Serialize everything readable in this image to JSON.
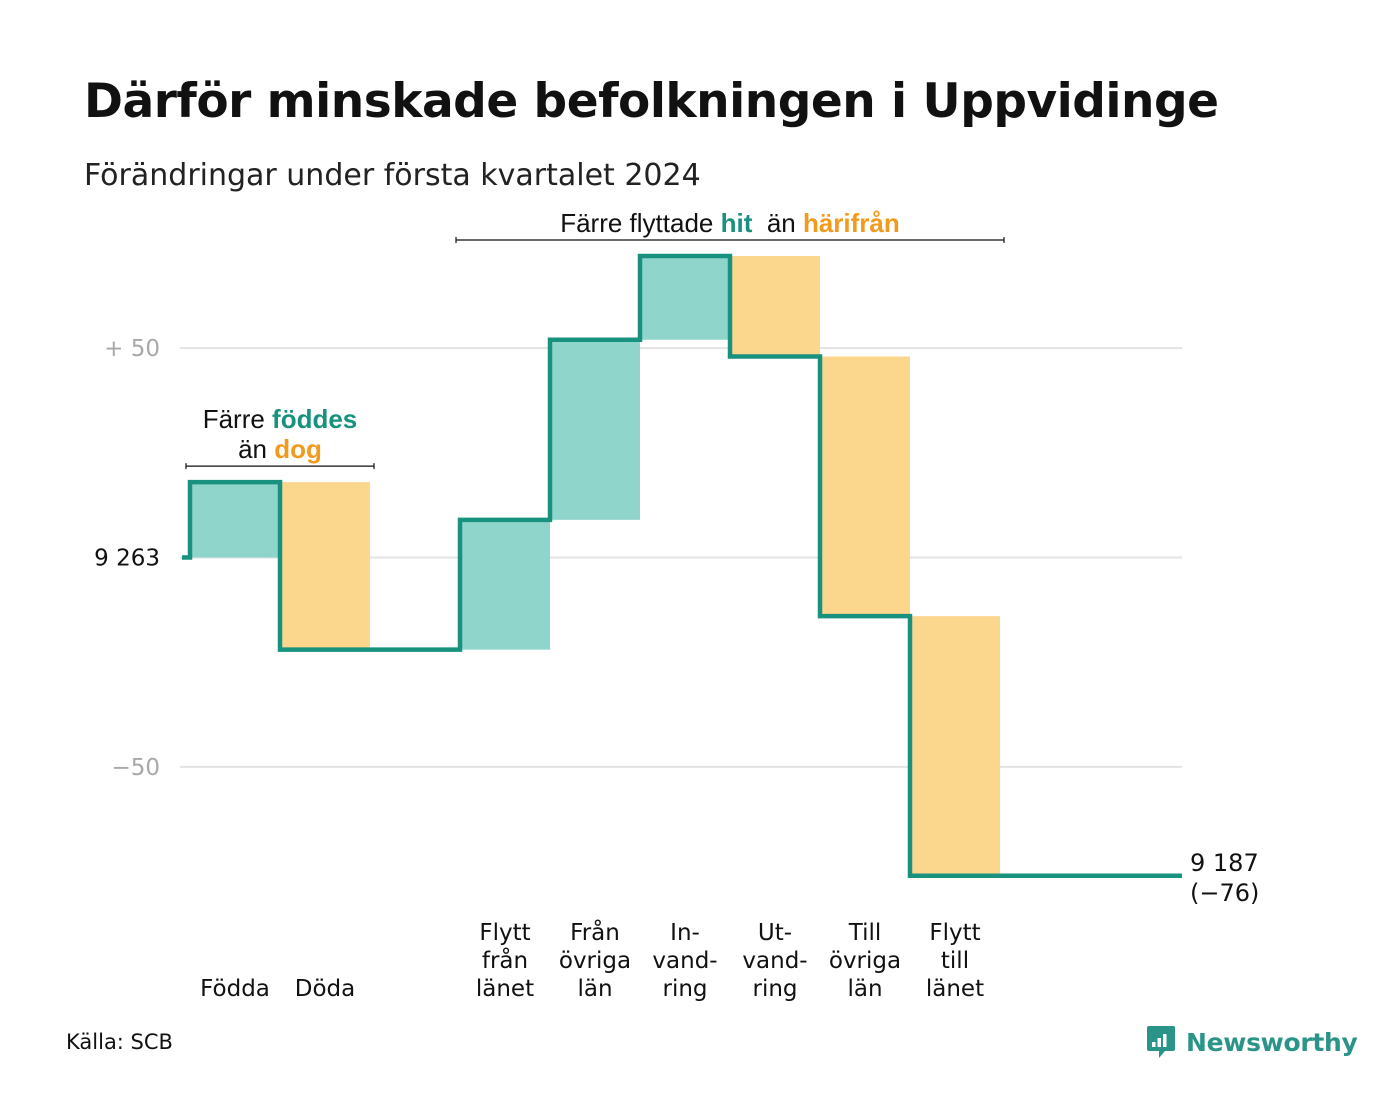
{
  "title": "Därför minskade befolkningen i Uppvidinge",
  "subtitle": "Förändringar under första kvartalet 2024",
  "source": "Källa: SCB",
  "brand": "Newsworthy",
  "colors": {
    "line": "#18917f",
    "increase": "#8fd5cb",
    "decrease": "#fbd68d",
    "increase_text": "#18917f",
    "decrease_text": "#f19a1b",
    "grid": "#e3e3e3",
    "axis_text": "#a8a8a8",
    "logo": "#2b9489"
  },
  "chart_data": {
    "type": "bar",
    "variant": "waterfall",
    "start_value": 9263,
    "end_value": 9187,
    "net_change": -76,
    "ylim": [
      -77,
      72
    ],
    "y_ticks": [
      {
        "value": 50,
        "label": "+  50"
      },
      {
        "value": 0,
        "label": "9  263"
      },
      {
        "value": -50,
        "label": "−50"
      }
    ],
    "steps": [
      {
        "category": [
          "Födda"
        ],
        "value": 18,
        "kind": "increase"
      },
      {
        "category": [
          "Döda"
        ],
        "value": -40,
        "kind": "decrease"
      },
      {
        "category": [],
        "value": 0,
        "kind": "gap"
      },
      {
        "category": [
          "Flytt",
          "från",
          "länet"
        ],
        "value": 31,
        "kind": "increase"
      },
      {
        "category": [
          "Från",
          "övriga",
          "län"
        ],
        "value": 43,
        "kind": "increase"
      },
      {
        "category": [
          "In-",
          "vand-",
          "ring"
        ],
        "value": 20,
        "kind": "increase"
      },
      {
        "category": [
          "Ut-",
          "vand-",
          "ring"
        ],
        "value": -24,
        "kind": "decrease"
      },
      {
        "category": [
          "Till",
          "övriga",
          "län"
        ],
        "value": -62,
        "kind": "decrease"
      },
      {
        "category": [
          "Flytt",
          "till",
          "länet"
        ],
        "value": -62,
        "kind": "decrease"
      },
      {
        "category": [],
        "value": 0,
        "kind": "gap"
      }
    ],
    "end_label": [
      "9 187",
      "(−76)"
    ],
    "annotations": [
      {
        "lines": [
          [
            {
              "text": "Färre ",
              "style": "plain"
            },
            {
              "text": "föddes",
              "style": "increase"
            }
          ],
          [
            {
              "text": "än ",
              "style": "plain"
            },
            {
              "text": "dog",
              "style": "decrease"
            }
          ]
        ],
        "from_step": 0,
        "to_step": 1
      },
      {
        "lines": [
          [
            {
              "text": "Färre flyttade ",
              "style": "plain"
            },
            {
              "text": "hit",
              "style": "increase"
            },
            {
              "text": "  än ",
              "style": "plain"
            },
            {
              "text": "härifrån",
              "style": "decrease"
            }
          ]
        ],
        "from_step": 3,
        "to_step": 8
      }
    ]
  }
}
